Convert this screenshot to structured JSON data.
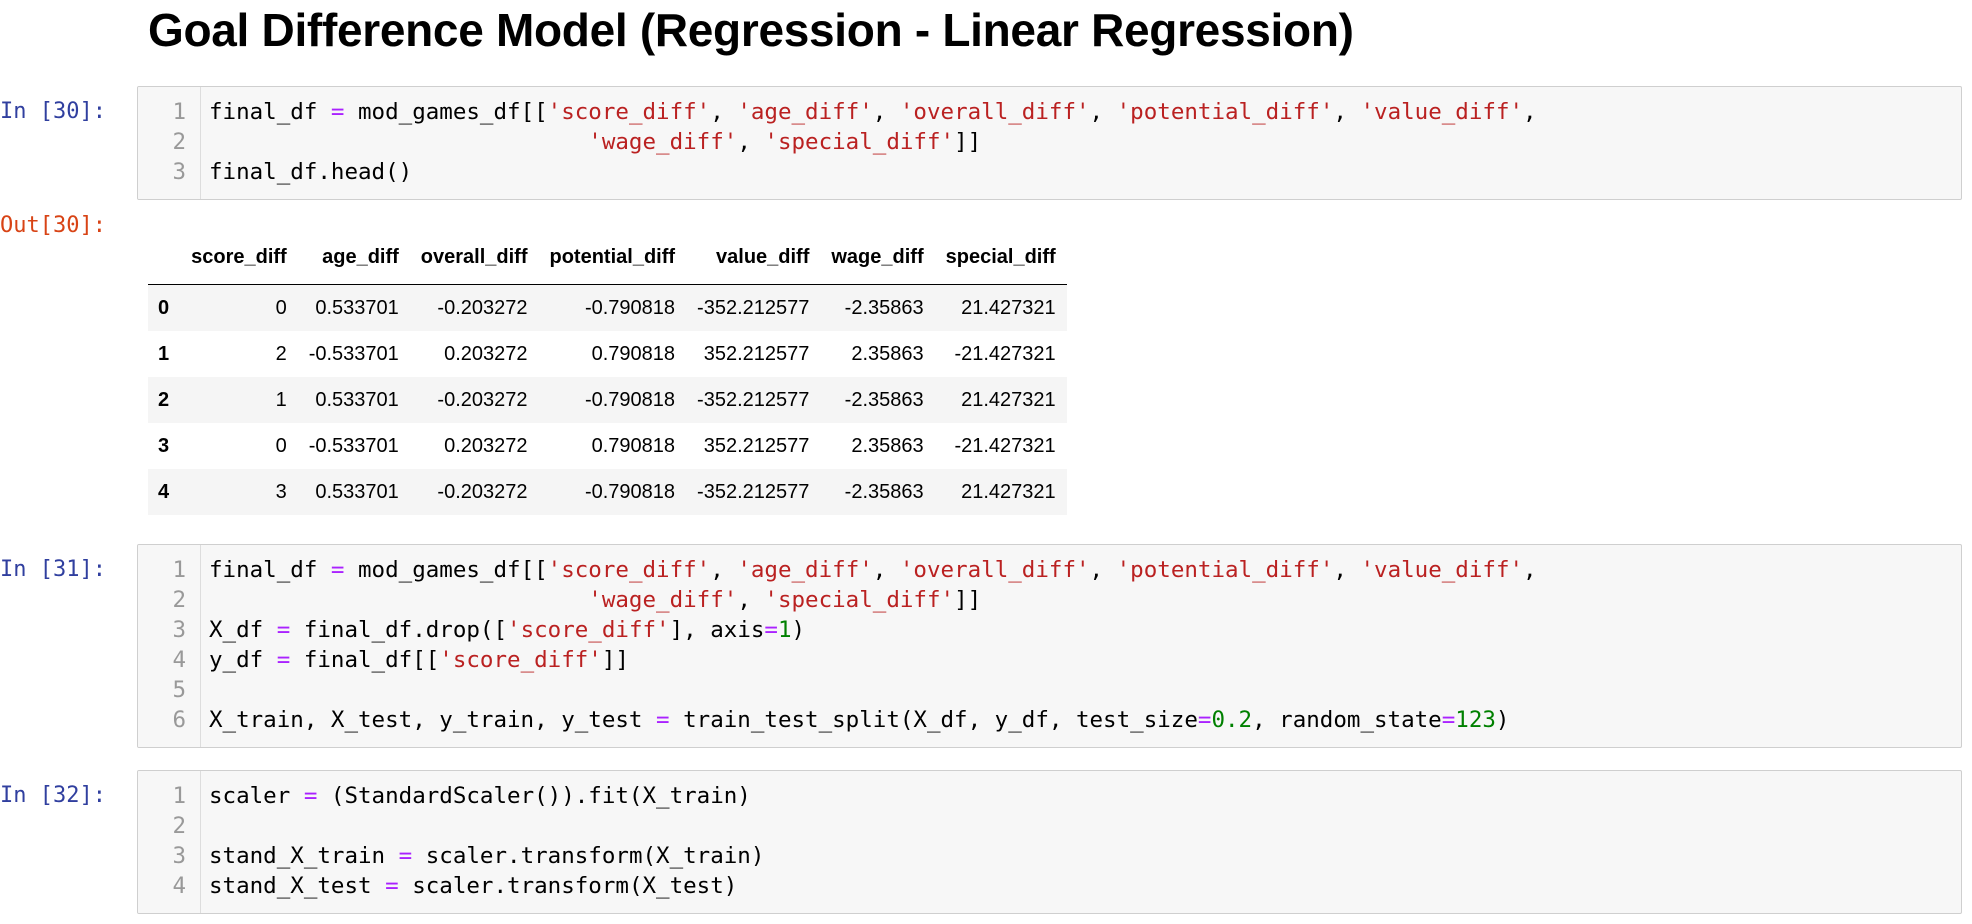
{
  "heading": "Goal Difference Model (Regression - Linear Regression)",
  "cells": [
    {
      "prompt": "In [30]:",
      "lines": [
        {
          "n": "1",
          "tokens": [
            {
              "t": "final_df ",
              "c": "code"
            },
            {
              "t": "=",
              "c": "op"
            },
            {
              "t": " mod_games_df[[",
              "c": "code"
            },
            {
              "t": "'score_diff'",
              "c": "str"
            },
            {
              "t": ", ",
              "c": "code"
            },
            {
              "t": "'age_diff'",
              "c": "str"
            },
            {
              "t": ", ",
              "c": "code"
            },
            {
              "t": "'overall_diff'",
              "c": "str"
            },
            {
              "t": ", ",
              "c": "code"
            },
            {
              "t": "'potential_diff'",
              "c": "str"
            },
            {
              "t": ", ",
              "c": "code"
            },
            {
              "t": "'value_diff'",
              "c": "str"
            },
            {
              "t": ",",
              "c": "code"
            }
          ]
        },
        {
          "n": "2",
          "tokens": [
            {
              "t": "                            ",
              "c": "code"
            },
            {
              "t": "'wage_diff'",
              "c": "str"
            },
            {
              "t": ", ",
              "c": "code"
            },
            {
              "t": "'special_diff'",
              "c": "str"
            },
            {
              "t": "]]",
              "c": "code"
            }
          ]
        },
        {
          "n": "3",
          "tokens": [
            {
              "t": "final_df.head()",
              "c": "code"
            }
          ]
        }
      ]
    },
    {
      "prompt": "In [31]:",
      "lines": [
        {
          "n": "1",
          "tokens": [
            {
              "t": "final_df ",
              "c": "code"
            },
            {
              "t": "=",
              "c": "op"
            },
            {
              "t": " mod_games_df[[",
              "c": "code"
            },
            {
              "t": "'score_diff'",
              "c": "str"
            },
            {
              "t": ", ",
              "c": "code"
            },
            {
              "t": "'age_diff'",
              "c": "str"
            },
            {
              "t": ", ",
              "c": "code"
            },
            {
              "t": "'overall_diff'",
              "c": "str"
            },
            {
              "t": ", ",
              "c": "code"
            },
            {
              "t": "'potential_diff'",
              "c": "str"
            },
            {
              "t": ", ",
              "c": "code"
            },
            {
              "t": "'value_diff'",
              "c": "str"
            },
            {
              "t": ",",
              "c": "code"
            }
          ]
        },
        {
          "n": "2",
          "tokens": [
            {
              "t": "                            ",
              "c": "code"
            },
            {
              "t": "'wage_diff'",
              "c": "str"
            },
            {
              "t": ", ",
              "c": "code"
            },
            {
              "t": "'special_diff'",
              "c": "str"
            },
            {
              "t": "]]",
              "c": "code"
            }
          ]
        },
        {
          "n": "3",
          "tokens": [
            {
              "t": "X_df ",
              "c": "code"
            },
            {
              "t": "=",
              "c": "op"
            },
            {
              "t": " final_df.drop([",
              "c": "code"
            },
            {
              "t": "'score_diff'",
              "c": "str"
            },
            {
              "t": "], axis",
              "c": "code"
            },
            {
              "t": "=",
              "c": "op"
            },
            {
              "t": "1",
              "c": "num"
            },
            {
              "t": ")",
              "c": "code"
            }
          ]
        },
        {
          "n": "4",
          "tokens": [
            {
              "t": "y_df ",
              "c": "code"
            },
            {
              "t": "=",
              "c": "op"
            },
            {
              "t": " final_df[[",
              "c": "code"
            },
            {
              "t": "'score_diff'",
              "c": "str"
            },
            {
              "t": "]]",
              "c": "code"
            }
          ]
        },
        {
          "n": "5",
          "tokens": []
        },
        {
          "n": "6",
          "tokens": [
            {
              "t": "X_train, X_test, y_train, y_test ",
              "c": "code"
            },
            {
              "t": "=",
              "c": "op"
            },
            {
              "t": " train_test_split(X_df, y_df, test_size",
              "c": "code"
            },
            {
              "t": "=",
              "c": "op"
            },
            {
              "t": "0.2",
              "c": "num"
            },
            {
              "t": ", random_state",
              "c": "code"
            },
            {
              "t": "=",
              "c": "op"
            },
            {
              "t": "123",
              "c": "num"
            },
            {
              "t": ")",
              "c": "code"
            }
          ]
        }
      ]
    },
    {
      "prompt": "In [32]:",
      "lines": [
        {
          "n": "1",
          "tokens": [
            {
              "t": "scaler ",
              "c": "code"
            },
            {
              "t": "=",
              "c": "op"
            },
            {
              "t": " (StandardScaler()).fit(X_train)",
              "c": "code"
            }
          ]
        },
        {
          "n": "2",
          "tokens": []
        },
        {
          "n": "3",
          "tokens": [
            {
              "t": "stand_X_train ",
              "c": "code"
            },
            {
              "t": "=",
              "c": "op"
            },
            {
              "t": " scaler.transform(X_train)",
              "c": "code"
            }
          ]
        },
        {
          "n": "4",
          "tokens": [
            {
              "t": "stand_X_test ",
              "c": "code"
            },
            {
              "t": "=",
              "c": "op"
            },
            {
              "t": " scaler.transform(X_test)",
              "c": "code"
            }
          ]
        }
      ]
    }
  ],
  "output": {
    "prompt": "Out[30]:",
    "columns": [
      "",
      "score_diff",
      "age_diff",
      "overall_diff",
      "potential_diff",
      "value_diff",
      "wage_diff",
      "special_diff"
    ],
    "rows": [
      [
        "0",
        "0",
        "0.533701",
        "-0.203272",
        "-0.790818",
        "-352.212577",
        "-2.35863",
        "21.427321"
      ],
      [
        "1",
        "2",
        "-0.533701",
        "0.203272",
        "0.790818",
        "352.212577",
        "2.35863",
        "-21.427321"
      ],
      [
        "2",
        "1",
        "0.533701",
        "-0.203272",
        "-0.790818",
        "-352.212577",
        "-2.35863",
        "21.427321"
      ],
      [
        "3",
        "0",
        "-0.533701",
        "0.203272",
        "0.790818",
        "352.212577",
        "2.35863",
        "-21.427321"
      ],
      [
        "4",
        "3",
        "0.533701",
        "-0.203272",
        "-0.790818",
        "-352.212577",
        "-2.35863",
        "21.427321"
      ]
    ]
  },
  "colors": {
    "in_prompt": "#303f9f",
    "out_prompt": "#d84315",
    "string": "#ba2121",
    "operator": "#aa22ff",
    "number": "#008000",
    "cell_bg": "#f7f7f7"
  }
}
